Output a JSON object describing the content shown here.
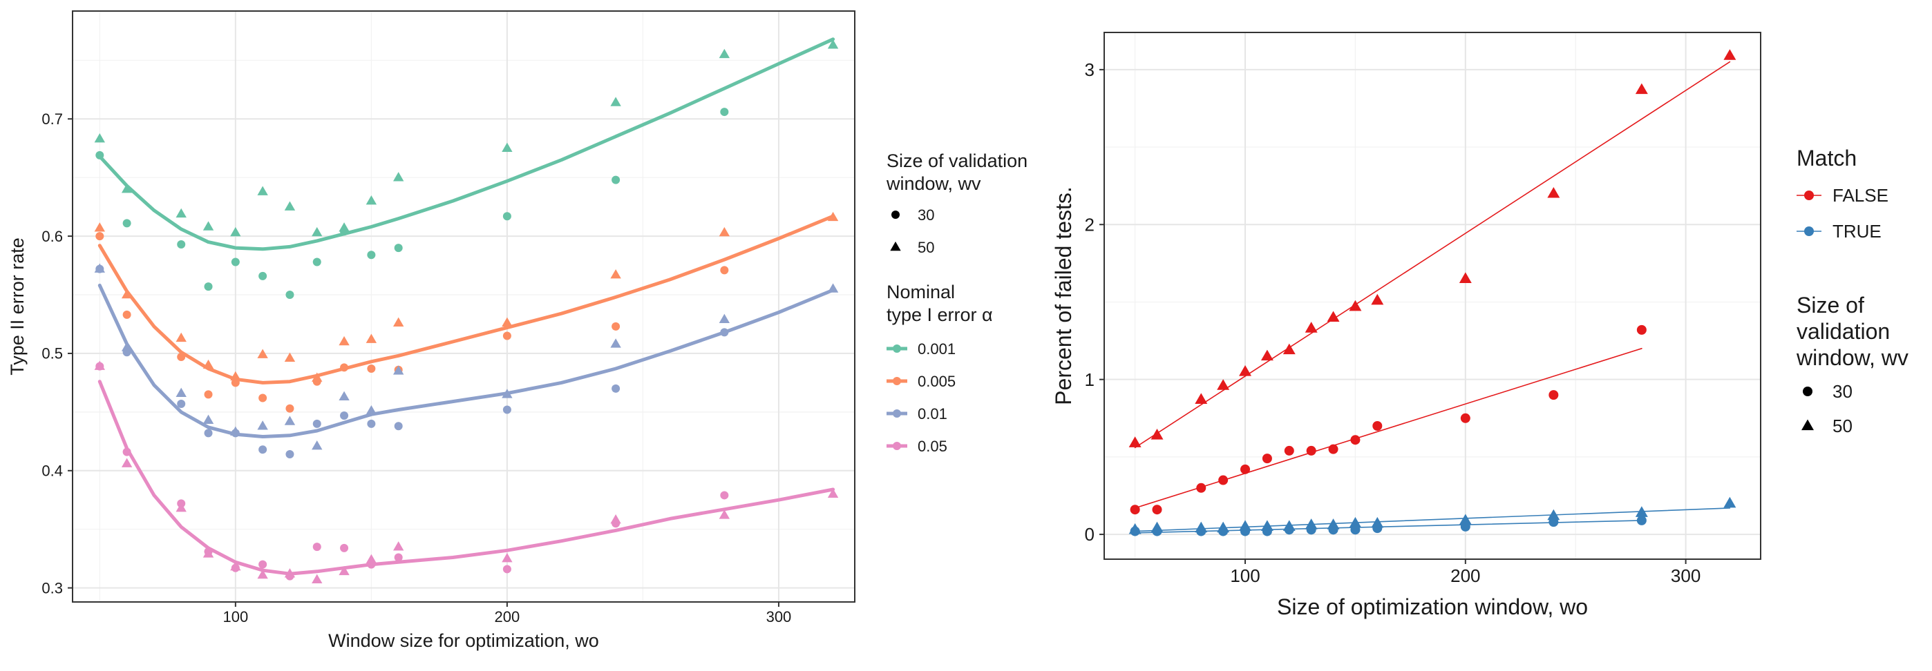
{
  "chart_data": [
    {
      "type": "scatter",
      "xlabel": "Window size for optimization,  wo",
      "ylabel": "Type II error rate",
      "xlim": [
        40,
        328
      ],
      "ylim": [
        0.288,
        0.792
      ],
      "x_ticks": [
        100,
        200,
        300
      ],
      "y_ticks": [
        0.3,
        0.4,
        0.5,
        0.6,
        0.7
      ],
      "grid": true,
      "legend_position": "right",
      "shape_legend": {
        "title_lines": [
          "Size of validation",
          "window, wv"
        ],
        "entries": [
          {
            "label": "30",
            "shape": "circle"
          },
          {
            "label": "50",
            "shape": "triangle"
          }
        ]
      },
      "color_legend": {
        "title_lines": [
          "Nominal",
          "type I error α"
        ],
        "entries": [
          "0.001",
          "0.005",
          "0.01",
          "0.05"
        ]
      },
      "series": [
        {
          "name": "0.001",
          "color": "#66c2a5",
          "trend": {
            "x": [
              50,
              60,
              70,
              80,
              90,
              100,
              110,
              120,
              130,
              140,
              150,
              160,
              180,
              200,
              220,
              240,
              260,
              280,
              300,
              320
            ],
            "y": [
              0.668,
              0.643,
              0.622,
              0.606,
              0.595,
              0.59,
              0.589,
              0.591,
              0.596,
              0.602,
              0.608,
              0.615,
              0.63,
              0.647,
              0.665,
              0.685,
              0.705,
              0.726,
              0.747,
              0.768
            ]
          },
          "wv30": {
            "x": [
              50,
              60,
              80,
              90,
              100,
              110,
              120,
              130,
              140,
              150,
              160,
              200,
              240,
              280
            ],
            "y": [
              0.669,
              0.611,
              0.593,
              0.557,
              0.578,
              0.566,
              0.55,
              0.578,
              0.604,
              0.584,
              0.59,
              0.617,
              0.648,
              0.706
            ]
          },
          "wv50": {
            "x": [
              50,
              60,
              80,
              90,
              100,
              110,
              120,
              130,
              140,
              150,
              160,
              200,
              240,
              280,
              320
            ],
            "y": [
              0.683,
              0.64,
              0.619,
              0.608,
              0.603,
              0.638,
              0.625,
              0.603,
              0.607,
              0.63,
              0.65,
              0.675,
              0.714,
              0.755,
              0.763
            ]
          }
        },
        {
          "name": "0.005",
          "color": "#fc8d62",
          "trend": {
            "x": [
              50,
              60,
              70,
              80,
              90,
              100,
              110,
              120,
              130,
              140,
              150,
              160,
              180,
              200,
              220,
              240,
              260,
              280,
              300,
              320
            ],
            "y": [
              0.592,
              0.553,
              0.523,
              0.501,
              0.487,
              0.478,
              0.475,
              0.476,
              0.481,
              0.487,
              0.493,
              0.498,
              0.51,
              0.522,
              0.534,
              0.548,
              0.563,
              0.58,
              0.598,
              0.617
            ]
          },
          "wv30": {
            "x": [
              50,
              60,
              80,
              90,
              100,
              110,
              120,
              130,
              140,
              150,
              160,
              200,
              240,
              280
            ],
            "y": [
              0.6,
              0.533,
              0.497,
              0.465,
              0.475,
              0.462,
              0.453,
              0.476,
              0.488,
              0.487,
              0.486,
              0.515,
              0.523,
              0.571
            ]
          },
          "wv50": {
            "x": [
              50,
              60,
              80,
              90,
              100,
              110,
              120,
              130,
              140,
              150,
              160,
              200,
              240,
              280,
              320
            ],
            "y": [
              0.607,
              0.55,
              0.513,
              0.49,
              0.48,
              0.499,
              0.496,
              0.479,
              0.51,
              0.512,
              0.526,
              0.526,
              0.567,
              0.603,
              0.616
            ]
          }
        },
        {
          "name": "0.01",
          "color": "#8da0cb",
          "trend": {
            "x": [
              50,
              60,
              70,
              80,
              90,
              100,
              110,
              120,
              130,
              140,
              150,
              160,
              180,
              200,
              220,
              240,
              260,
              280,
              300,
              320
            ],
            "y": [
              0.558,
              0.508,
              0.473,
              0.45,
              0.437,
              0.431,
              0.429,
              0.43,
              0.434,
              0.441,
              0.448,
              0.452,
              0.459,
              0.466,
              0.475,
              0.487,
              0.502,
              0.518,
              0.535,
              0.554
            ]
          },
          "wv30": {
            "x": [
              50,
              60,
              80,
              90,
              100,
              110,
              120,
              130,
              140,
              150,
              160,
              200,
              240,
              280
            ],
            "y": [
              0.572,
              0.501,
              0.457,
              0.432,
              0.432,
              0.418,
              0.414,
              0.44,
              0.447,
              0.44,
              0.438,
              0.452,
              0.47,
              0.518
            ]
          },
          "wv50": {
            "x": [
              50,
              60,
              80,
              90,
              100,
              110,
              120,
              130,
              140,
              150,
              160,
              200,
              240,
              280,
              320
            ],
            "y": [
              0.572,
              0.505,
              0.466,
              0.443,
              0.433,
              0.438,
              0.442,
              0.421,
              0.463,
              0.451,
              0.485,
              0.465,
              0.508,
              0.529,
              0.555
            ]
          }
        },
        {
          "name": "0.05",
          "color": "#e78ac3",
          "trend": {
            "x": [
              50,
              60,
              70,
              80,
              90,
              100,
              110,
              120,
              130,
              140,
              150,
              160,
              180,
              200,
              220,
              240,
              260,
              280,
              300,
              320
            ],
            "y": [
              0.476,
              0.419,
              0.379,
              0.352,
              0.334,
              0.322,
              0.315,
              0.312,
              0.314,
              0.317,
              0.32,
              0.322,
              0.326,
              0.332,
              0.34,
              0.349,
              0.359,
              0.367,
              0.375,
              0.384
            ]
          },
          "wv30": {
            "x": [
              50,
              60,
              80,
              90,
              100,
              110,
              120,
              130,
              140,
              150,
              160,
              200,
              240,
              280
            ],
            "y": [
              0.489,
              0.416,
              0.372,
              0.331,
              0.317,
              0.32,
              0.31,
              0.335,
              0.334,
              0.32,
              0.326,
              0.316,
              0.355,
              0.379
            ]
          },
          "wv50": {
            "x": [
              50,
              60,
              80,
              90,
              100,
              110,
              120,
              130,
              140,
              150,
              160,
              200,
              240,
              280,
              320
            ],
            "y": [
              0.489,
              0.406,
              0.368,
              0.329,
              0.318,
              0.311,
              0.312,
              0.307,
              0.314,
              0.324,
              0.335,
              0.325,
              0.358,
              0.362,
              0.38
            ]
          }
        }
      ]
    },
    {
      "type": "scatter",
      "xlabel": "Size of optimization window, wo",
      "ylabel": "Percent of failed tests.",
      "xlim": [
        36,
        334
      ],
      "ylim": [
        -0.16,
        3.24
      ],
      "x_ticks": [
        100,
        200,
        300
      ],
      "y_ticks": [
        0,
        1,
        2,
        3
      ],
      "grid": true,
      "legend_position": "right",
      "color_legend": {
        "title": "Match",
        "entries": [
          "FALSE",
          "TRUE"
        ]
      },
      "shape_legend": {
        "title_lines": [
          "Size of",
          "validation",
          "window, wv"
        ],
        "entries": [
          {
            "label": "30",
            "shape": "circle"
          },
          {
            "label": "50",
            "shape": "triangle"
          }
        ]
      },
      "series": [
        {
          "name": "FALSE",
          "color": "#e41a1c",
          "wv30": {
            "x": [
              50,
              60,
              80,
              90,
              100,
              110,
              120,
              130,
              140,
              150,
              160,
              200,
              240,
              280
            ],
            "y": [
              0.16,
              0.16,
              0.3,
              0.35,
              0.42,
              0.49,
              0.54,
              0.54,
              0.55,
              0.61,
              0.7,
              0.75,
              0.9,
              1.32
            ]
          },
          "wv50": {
            "x": [
              50,
              60,
              80,
              90,
              100,
              110,
              120,
              130,
              140,
              150,
              160,
              200,
              240,
              280,
              320
            ],
            "y": [
              0.59,
              0.64,
              0.87,
              0.96,
              1.05,
              1.15,
              1.19,
              1.33,
              1.4,
              1.47,
              1.51,
              1.65,
              2.2,
              2.87,
              3.09
            ]
          },
          "fit30": {
            "x": [
              50,
              280
            ],
            "y": [
              0.17,
              1.2
            ]
          },
          "fit50": {
            "x": [
              50,
              320
            ],
            "y": [
              0.56,
              3.05
            ]
          }
        },
        {
          "name": "TRUE",
          "color": "#377eb8",
          "wv30": {
            "x": [
              50,
              60,
              80,
              90,
              100,
              110,
              120,
              130,
              140,
              150,
              160,
              200,
              240,
              280
            ],
            "y": [
              0.02,
              0.02,
              0.02,
              0.02,
              0.02,
              0.02,
              0.03,
              0.03,
              0.03,
              0.03,
              0.04,
              0.05,
              0.08,
              0.09
            ]
          },
          "wv50": {
            "x": [
              50,
              60,
              80,
              90,
              100,
              110,
              120,
              130,
              140,
              150,
              160,
              200,
              240,
              280,
              320
            ],
            "y": [
              0.03,
              0.04,
              0.04,
              0.04,
              0.05,
              0.05,
              0.05,
              0.06,
              0.06,
              0.07,
              0.07,
              0.09,
              0.12,
              0.14,
              0.2
            ]
          },
          "fit30": {
            "x": [
              50,
              280
            ],
            "y": [
              0.01,
              0.09
            ]
          },
          "fit50": {
            "x": [
              50,
              320
            ],
            "y": [
              0.02,
              0.17
            ]
          }
        }
      ]
    }
  ]
}
